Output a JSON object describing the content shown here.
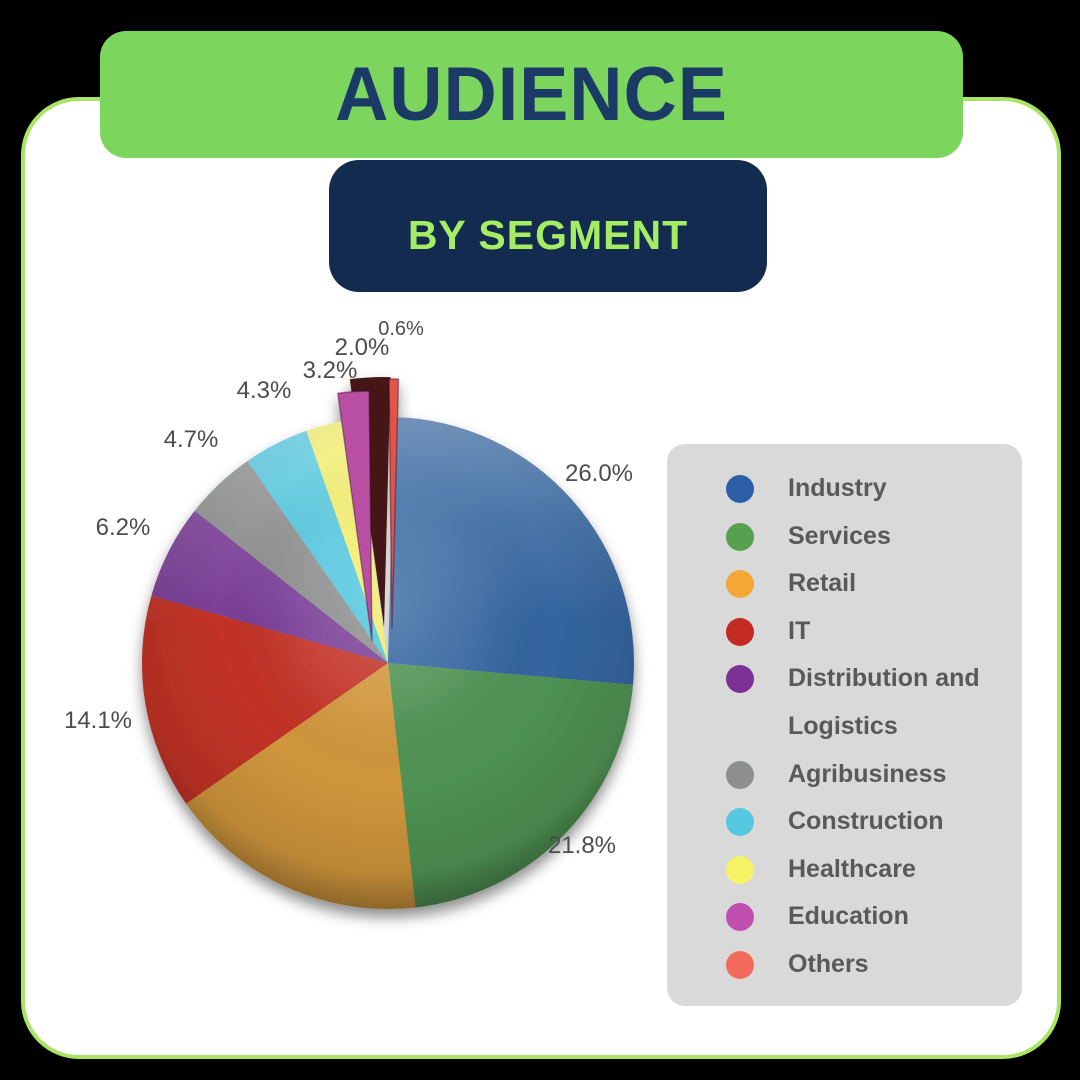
{
  "header": {
    "title": "AUDIENCE",
    "subtitle": "BY SEGMENT"
  },
  "colors": {
    "background": "#000000",
    "card_bg": "#ffffff",
    "card_border": "#a9e562",
    "banner_bg": "#7cd65e",
    "banner_text": "#1c3a66",
    "subbanner_bg": "#132b4e",
    "subbanner_text": "#a5ee63",
    "legend_bg": "#d9d9d9",
    "legend_text": "#595959",
    "pct_label_text": "#4c4c4c",
    "explode_shadow": "#451419"
  },
  "chart_data": {
    "type": "pie",
    "title": "AUDIENCE",
    "subtitle": "BY SEGMENT",
    "unit": "%",
    "legend_position": "right",
    "total": 100,
    "slices": [
      {
        "name": "Industry",
        "value": 26.0,
        "pct_label": "26.0%",
        "color": "#34659f",
        "dot": "#2c5fa7",
        "label_offset": [
          0,
          6
        ]
      },
      {
        "name": "Services",
        "value": 21.8,
        "pct_label": "21.8%",
        "color": "#4f9253",
        "dot": "#57a04f",
        "label_offset": [
          -8,
          -7
        ]
      },
      {
        "name": "Retail",
        "value": 17.1,
        "pct_label": "",
        "color": "#d0963c",
        "dot": "#f4a637",
        "label_offset": [
          0,
          0
        ]
      },
      {
        "name": "IT",
        "value": 14.1,
        "pct_label": "14.1%",
        "color": "#c23327",
        "dot": "#c32a24",
        "label_offset": [
          -12,
          19
        ]
      },
      {
        "name": "Distribution and Logistics",
        "value": 6.2,
        "pct_label": "6.2%",
        "color": "#7a3e96",
        "dot": "#7c3295",
        "label_offset": [
          -14,
          0
        ]
      },
      {
        "name": "Agribusiness",
        "value": 4.7,
        "pct_label": "4.7%",
        "color": "#8a8c8b",
        "dot": "#8c8f8d",
        "label_offset": [
          -4,
          -11
        ]
      },
      {
        "name": "Construction",
        "value": 4.3,
        "pct_label": "4.3%",
        "color": "#4ec5dc",
        "dot": "#55c8e2",
        "label_offset": [
          5,
          -14
        ]
      },
      {
        "name": "Healthcare",
        "value": 3.2,
        "pct_label": "3.2%",
        "color": "#f0ec66",
        "dot": "#f6f266",
        "label_offset": [
          8,
          -11
        ]
      },
      {
        "name": "Education",
        "value": 2.0,
        "pct_label": "2.0%",
        "color": "#b850a3",
        "dot": "#bf4fae",
        "explode": [
          -16,
          -22
        ],
        "label_offset": [
          0,
          -20
        ]
      },
      {
        "name": "Others",
        "value": 0.6,
        "pct_label": "0.6%",
        "color": "#e25449",
        "dot": "#f26a5b",
        "explode": [
          4,
          -34
        ],
        "label_offset": [
          10,
          -36
        ],
        "label_size": 20
      }
    ]
  }
}
